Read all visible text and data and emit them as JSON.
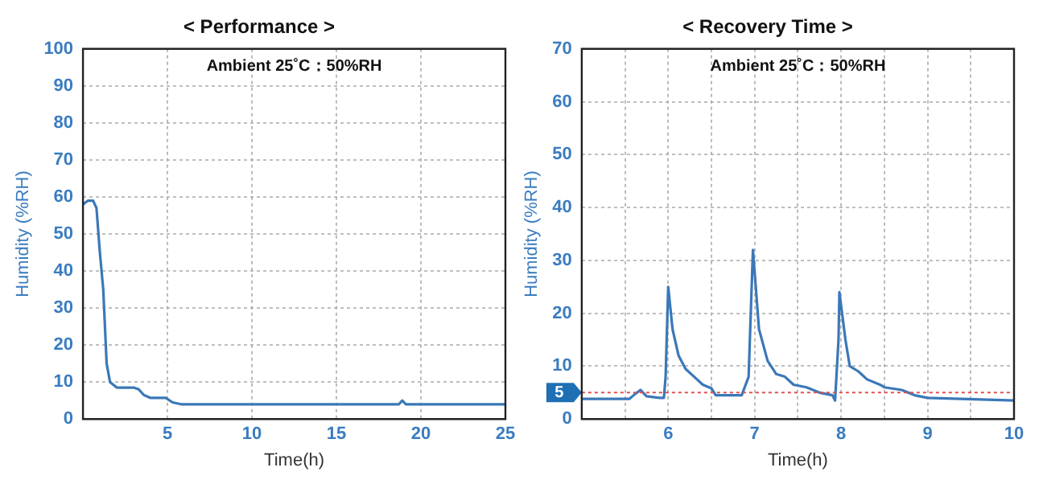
{
  "chart_data": [
    {
      "type": "line",
      "title": "< Performance >",
      "xlabel": "Time(h)",
      "ylabel": "Humidity (%RH)",
      "annotations": [
        "Ambient 25˚C：50%RH"
      ],
      "series": [
        {
          "color": "#3b78b8",
          "x": [
            0,
            0.3,
            0.6,
            0.8,
            1.0,
            1.2,
            1.4,
            1.6,
            2,
            3,
            3.3,
            3.6,
            4,
            4.9,
            5.3,
            5.8,
            18.7,
            18.9,
            19.1,
            25
          ],
          "values": [
            58,
            59,
            59,
            57,
            45,
            35,
            15,
            10,
            8.5,
            8.5,
            8,
            6.5,
            5.7,
            5.7,
            4.5,
            4,
            4,
            5,
            4,
            4
          ]
        }
      ],
      "xlim": [
        0,
        25
      ],
      "xticks": [
        {
          "value": 0,
          "label": null
        },
        5,
        10,
        15,
        20,
        25
      ],
      "ylim": [
        0,
        100
      ],
      "yticks": [
        0,
        10,
        20,
        30,
        40,
        50,
        60,
        70,
        80,
        90,
        100
      ],
      "grid": true
    },
    {
      "type": "line",
      "title": "< Recovery Time >",
      "xlabel": "Time(h)",
      "ylabel": "Humidity (%RH)",
      "annotations": [
        "Ambient 25˚C：50%RH"
      ],
      "series": [
        {
          "color": "#3b78b8",
          "x": [
            5,
            5.55,
            5.6,
            5.68,
            5.75,
            5.9,
            5.95,
            5.97,
            6.0,
            6.05,
            6.12,
            6.2,
            6.3,
            6.4,
            6.5,
            6.55,
            6.85,
            6.93,
            6.98,
            7.05,
            7.15,
            7.25,
            7.35,
            7.45,
            7.6,
            7.75,
            7.9,
            7.93,
            7.97,
            7.98,
            8.05,
            8.1,
            8.2,
            8.3,
            8.45,
            8.5,
            8.7,
            8.85,
            9,
            10
          ],
          "values": [
            3.8,
            3.8,
            4.5,
            5.5,
            4.3,
            4,
            4,
            8,
            25,
            17,
            12,
            9.5,
            8,
            6.5,
            5.8,
            4.5,
            4.5,
            8,
            32,
            17,
            11,
            8.5,
            8,
            6.5,
            6,
            5,
            4.5,
            3.5,
            15,
            24,
            15,
            10,
            9,
            7.5,
            6.5,
            6,
            5.5,
            4.5,
            4,
            3.5
          ]
        }
      ],
      "xlim": [
        5,
        10
      ],
      "xticks": [
        {
          "value": 5,
          "label": null
        },
        {
          "value": 5.5,
          "label": null
        },
        6,
        {
          "value": 6.5,
          "label": null
        },
        7,
        {
          "value": 7.5,
          "label": null
        },
        8,
        {
          "value": 8.5,
          "label": null
        },
        9,
        {
          "value": 9.5,
          "label": null
        },
        10
      ],
      "ylim": [
        0,
        70
      ],
      "yticks": [
        0,
        10,
        20,
        30,
        40,
        50,
        60,
        70
      ],
      "grid": true,
      "ref_lines": [
        {
          "axis": "y",
          "value": 5,
          "label": "5",
          "color": "#e05050",
          "line_style": "dotted"
        }
      ]
    }
  ]
}
